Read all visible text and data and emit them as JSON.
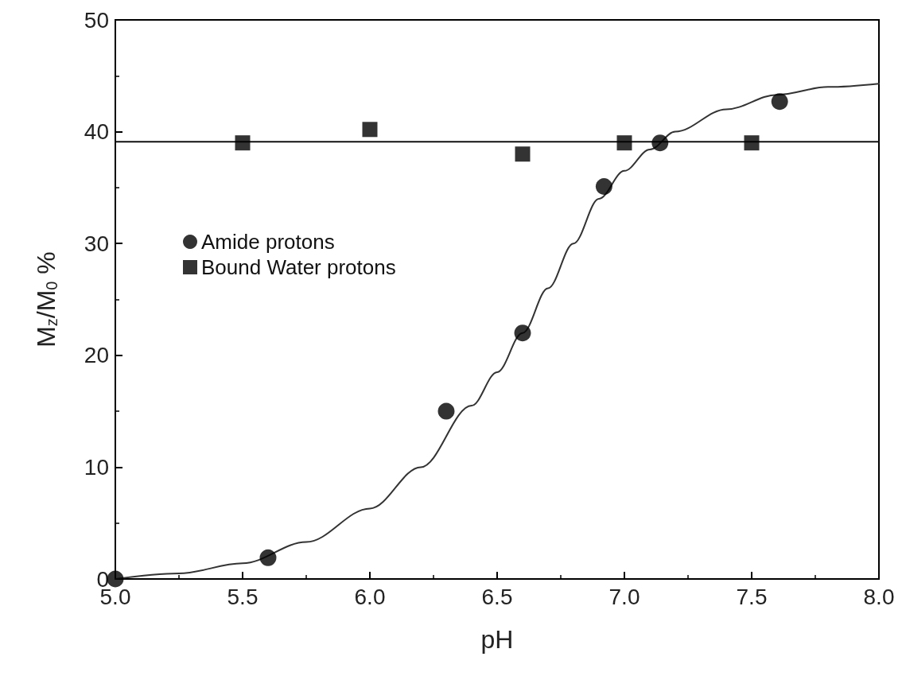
{
  "chart_data": {
    "type": "scatter",
    "xlabel": "pH",
    "ylabel": "M$_{z}$/M$_{0}$ %",
    "xlim": [
      5.0,
      8.0
    ],
    "ylim": [
      0,
      50
    ],
    "xticks": [
      {
        "value": 5,
        "label": "5.0"
      },
      {
        "value": 5.5,
        "label": "5.5"
      },
      {
        "value": 6,
        "label": "6.0"
      },
      {
        "value": 6.5,
        "label": "6.5"
      },
      {
        "value": 7,
        "label": "7.0"
      },
      {
        "value": 7.5,
        "label": "7.5"
      },
      {
        "value": 8,
        "label": "8.0"
      }
    ],
    "yticks": [
      0,
      10,
      20,
      30,
      40,
      50
    ],
    "grid": false,
    "legend": "top left",
    "series": [
      {
        "name": "Amide protons",
        "marker": "circle",
        "color": "#000000",
        "x": [
          5.0,
          5.6,
          6.3,
          6.6,
          6.92,
          7.14,
          7.61
        ],
        "values": [
          0,
          1.9,
          15.0,
          22.0,
          35.1,
          39.0,
          42.7
        ]
      },
      {
        "name": "Bound Water protons",
        "marker": "square",
        "color": "#000000",
        "x": [
          5.5,
          6.0,
          6.6,
          7.0,
          7.5
        ],
        "values": [
          39.0,
          40.2,
          38.0,
          39.0,
          39.0
        ]
      },
      {
        "type": "line",
        "marker": "none",
        "color": "#333333",
        "x": [
          5.0,
          5.25,
          5.5,
          5.75,
          6.0,
          6.2,
          6.4,
          6.5,
          6.6,
          6.7,
          6.8,
          6.9,
          7.0,
          7.1,
          7.2,
          7.4,
          7.6,
          7.8,
          8.0
        ],
        "values": [
          0,
          0.5,
          1.4,
          3.3,
          6.3,
          10,
          15.5,
          18.5,
          22,
          26,
          30,
          34,
          36.5,
          38.4,
          40,
          42,
          43.3,
          44,
          44.3
        ]
      },
      {
        "type": "line",
        "marker": "none",
        "color": "#111111",
        "x": [
          5.0,
          8.0
        ],
        "values": [
          39.1,
          39.1
        ]
      }
    ]
  }
}
